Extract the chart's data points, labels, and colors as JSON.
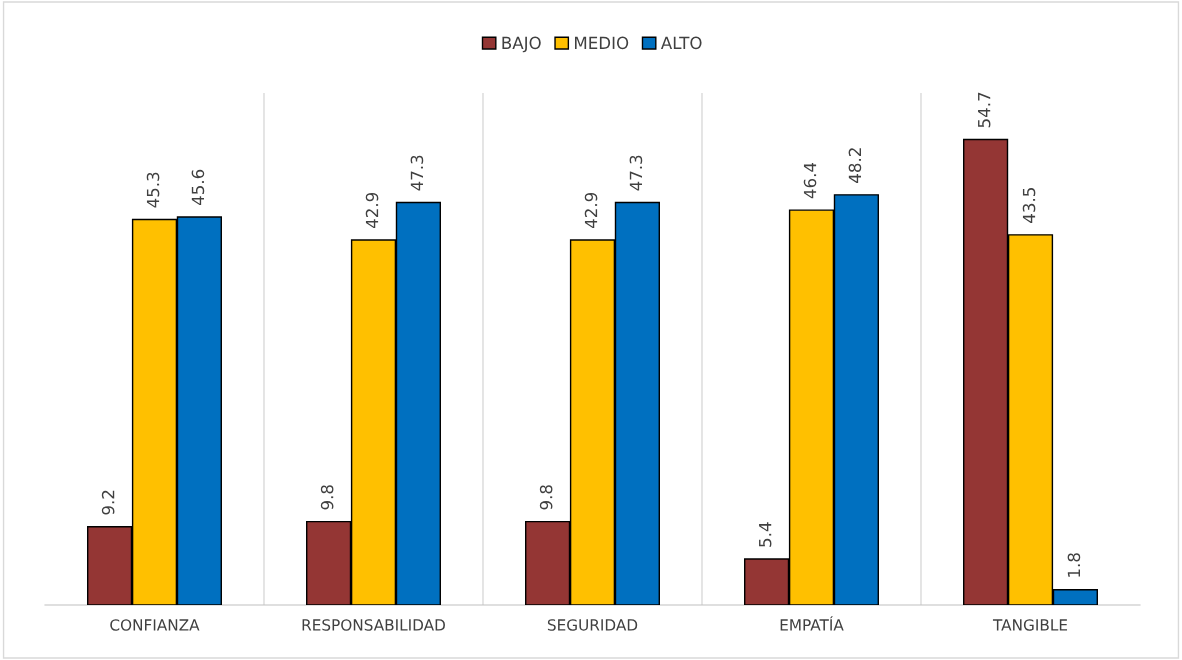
{
  "chart_data": {
    "type": "bar",
    "categories": [
      "CONFIANZA",
      "RESPONSABILIDAD",
      "SEGURIDAD",
      "EMPATÍA",
      "TANGIBLE"
    ],
    "series": [
      {
        "name": "BAJO",
        "color": "#943634",
        "values": [
          9.2,
          9.8,
          9.8,
          5.4,
          54.7
        ]
      },
      {
        "name": "MEDIO",
        "color": "#ffc000",
        "values": [
          45.3,
          42.9,
          42.9,
          46.4,
          43.5
        ]
      },
      {
        "name": "ALTO",
        "color": "#0070c0",
        "values": [
          45.6,
          47.3,
          47.3,
          48.2,
          1.8
        ]
      }
    ],
    "data_labels": true,
    "legend": "top",
    "grid": "x",
    "tick_labels": "x"
  }
}
